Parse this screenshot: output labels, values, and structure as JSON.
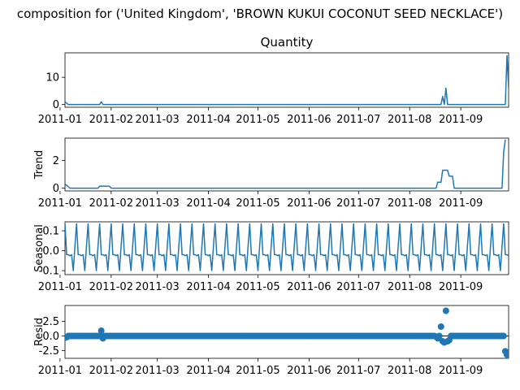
{
  "chart_data": {
    "type": "line",
    "suptitle": "composition for ('United Kingdom', 'BROWN KUKUI COCONUT SEED NECKLACE')",
    "x_start": "2011-01-04",
    "x_end": "2011-09-30",
    "x_tick_dates": [
      "2011-01-01",
      "2011-02-01",
      "2011-03-01",
      "2011-04-01",
      "2011-05-01",
      "2011-06-01",
      "2011-07-01",
      "2011-08-01",
      "2011-09-01"
    ],
    "x_tick_labels": [
      "2011-01",
      "2011-02",
      "2011-03",
      "2011-04",
      "2011-05",
      "2011-06",
      "2011-07",
      "2011-08",
      "2011-09"
    ],
    "panels": [
      {
        "key": "observed",
        "title": "Quantity",
        "ylabel": "",
        "style": "line",
        "ylim": [
          -1,
          19
        ],
        "yticks": [
          0,
          10
        ],
        "baseline": 0,
        "points": [
          [
            "2011-01-04",
            1.0
          ],
          [
            "2011-01-06",
            0
          ],
          [
            "2011-01-25",
            0
          ],
          [
            "2011-01-26",
            1.0
          ],
          [
            "2011-01-27",
            0
          ],
          [
            "2011-08-20",
            0
          ],
          [
            "2011-08-21",
            3.0
          ],
          [
            "2011-08-22",
            0
          ],
          [
            "2011-08-23",
            6.0
          ],
          [
            "2011-08-24",
            0
          ],
          [
            "2011-09-28",
            0
          ],
          [
            "2011-09-29",
            18.0
          ],
          [
            "2011-09-30",
            6.0
          ]
        ]
      },
      {
        "key": "trend",
        "title": "",
        "ylabel": "Trend",
        "style": "line",
        "ylim": [
          -0.2,
          3.6
        ],
        "yticks": [
          0,
          2
        ],
        "baseline": 0,
        "points": [
          [
            "2011-01-04",
            0.3
          ],
          [
            "2011-01-07",
            0
          ],
          [
            "2011-01-24",
            0
          ],
          [
            "2011-01-25",
            0.14
          ],
          [
            "2011-01-31",
            0.14
          ],
          [
            "2011-02-01",
            0
          ],
          [
            "2011-08-17",
            0
          ],
          [
            "2011-08-18",
            0.43
          ],
          [
            "2011-08-20",
            0.43
          ],
          [
            "2011-08-21",
            1.29
          ],
          [
            "2011-08-24",
            1.29
          ],
          [
            "2011-08-25",
            0.86
          ],
          [
            "2011-08-27",
            0.86
          ],
          [
            "2011-08-28",
            0
          ],
          [
            "2011-09-26",
            0
          ],
          [
            "2011-09-27",
            2.57
          ],
          [
            "2011-09-28",
            3.5
          ]
        ]
      },
      {
        "key": "seasonal",
        "title": "",
        "ylabel": "Seasonal",
        "style": "seasonal",
        "ylim": [
          -0.12,
          0.145
        ],
        "yticks": [
          -0.1,
          0.0,
          0.1
        ],
        "baseline": 0,
        "period_days": 7,
        "pattern": [
          0.135,
          -0.02,
          -0.02,
          -0.025,
          -0.02,
          -0.1,
          0.02
        ],
        "phase_start": "2011-01-04"
      },
      {
        "key": "resid",
        "title": "",
        "ylabel": "Resid",
        "style": "scatter",
        "ylim": [
          -3.8,
          5.2
        ],
        "yticks": [
          -2.5,
          0.0,
          2.5
        ],
        "baseline": 0,
        "default_value": 0.0,
        "outliers": [
          [
            "2011-01-04",
            -0.3
          ],
          [
            "2011-01-05",
            -0.2
          ],
          [
            "2011-01-26",
            0.9
          ],
          [
            "2011-01-27",
            -0.4
          ],
          [
            "2011-08-17",
            -0.1
          ],
          [
            "2011-08-18",
            -0.4
          ],
          [
            "2011-08-20",
            1.6
          ],
          [
            "2011-08-21",
            -0.9
          ],
          [
            "2011-08-22",
            -1.1
          ],
          [
            "2011-08-23",
            4.3
          ],
          [
            "2011-08-24",
            -0.9
          ],
          [
            "2011-08-25",
            -0.7
          ],
          [
            "2011-09-28",
            -2.6
          ],
          [
            "2011-09-29",
            -3.2
          ],
          [
            "2011-09-30",
            -3.5
          ]
        ]
      }
    ]
  }
}
